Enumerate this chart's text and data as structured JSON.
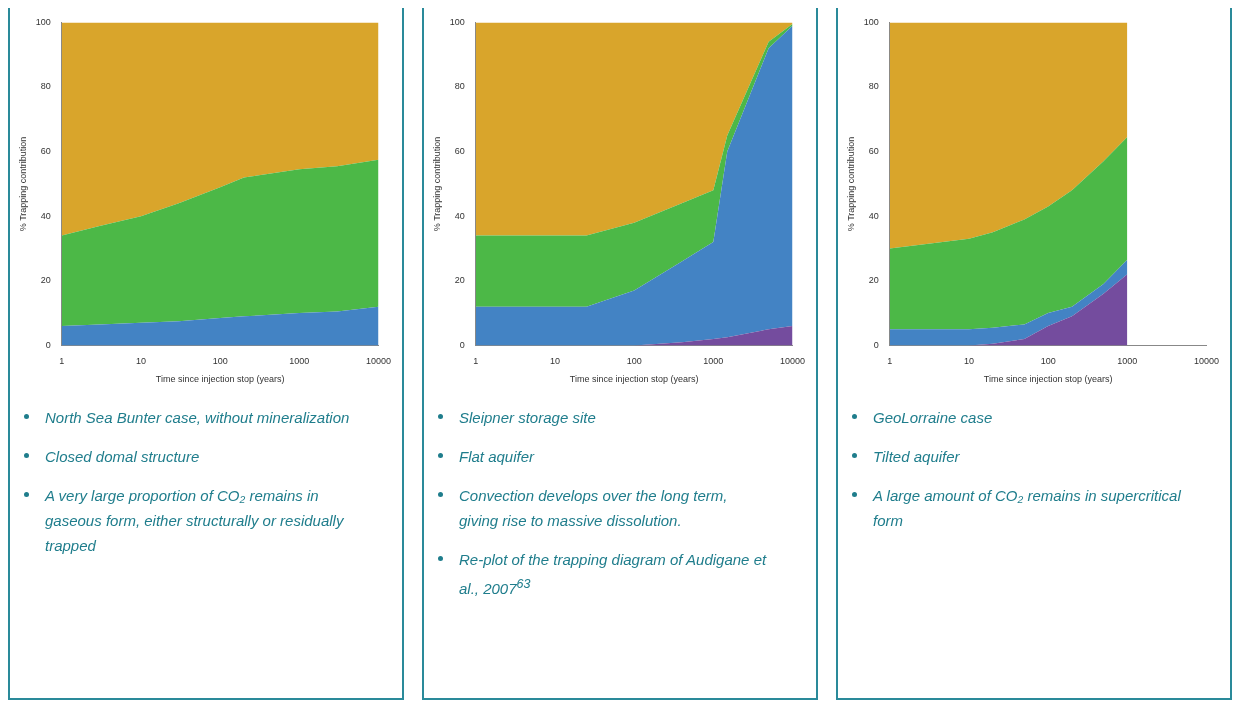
{
  "chart_data": [
    {
      "type": "area",
      "stacked": true,
      "log": "x",
      "xlabel": "Time since injection stop (years)",
      "ylabel": "% Trapping contribution",
      "x": [
        1,
        3,
        10,
        30,
        100,
        200,
        1000,
        3000,
        10000
      ],
      "xlim": [
        1,
        10000
      ],
      "xticks": [
        1,
        10,
        100,
        1000,
        10000
      ],
      "ylim": [
        0,
        100
      ],
      "yticks": [
        0,
        20,
        40,
        60,
        80,
        100
      ],
      "grid": false,
      "legend": false,
      "series": [
        {
          "color": "#4383c4",
          "values": [
            6,
            6.5,
            7,
            7.5,
            8.5,
            9,
            10,
            10.5,
            12
          ]
        },
        {
          "color": "#4cb847",
          "values": [
            28,
            30.5,
            33,
            36.5,
            40.5,
            43,
            44.5,
            45,
            45.5
          ]
        },
        {
          "color": "#d9a52b",
          "values": [
            66,
            63,
            60,
            56,
            51,
            48,
            45.5,
            44.5,
            42.5
          ]
        }
      ],
      "annotations": [
        "North Sea Bunter case, without mineralization",
        "Closed domal structure",
        "A very large proportion of CO₂ remains in gaseous form, either structurally or residually trapped"
      ]
    },
    {
      "type": "area",
      "stacked": true,
      "log": "x",
      "xlabel": "Time since injection stop (years)",
      "ylabel": "% Trapping contribution",
      "x": [
        1,
        25,
        100,
        400,
        1000,
        1500,
        5000,
        10000
      ],
      "xlim": [
        1,
        10000
      ],
      "xticks": [
        1,
        10,
        100,
        1000,
        10000
      ],
      "ylim": [
        0,
        100
      ],
      "yticks": [
        0,
        20,
        40,
        60,
        80,
        100
      ],
      "grid": false,
      "legend": false,
      "series": [
        {
          "color": "#744c9e",
          "values": [
            0,
            0,
            0,
            1,
            2,
            2.5,
            5,
            6
          ]
        },
        {
          "color": "#4383c4",
          "values": [
            12,
            12,
            17,
            25,
            30,
            57.5,
            87,
            93
          ]
        },
        {
          "color": "#4cb847",
          "values": [
            22,
            22,
            21,
            18,
            16,
            5,
            2,
            0.5
          ]
        },
        {
          "color": "#d9a52b",
          "values": [
            66,
            66,
            62,
            56,
            52,
            35,
            6,
            0.5
          ]
        }
      ],
      "annotations": [
        "Sleipner storage site",
        "Flat aquifer",
        "Convection develops over the long term, giving rise to massive dissolution.",
        "Re-plot of the trapping diagram of Audigane et al., 2007$^{63}$"
      ]
    },
    {
      "type": "area",
      "stacked": true,
      "log": "x",
      "xlabel": "Time since injection stop (years)",
      "ylabel": "% Trapping contribution",
      "x": [
        1,
        10,
        20,
        50,
        100,
        200,
        500,
        1000
      ],
      "xlim": [
        1,
        10000
      ],
      "xticks": [
        1,
        10,
        100,
        1000,
        10000
      ],
      "ylim": [
        0,
        100
      ],
      "yticks": [
        0,
        20,
        40,
        60,
        80,
        100
      ],
      "grid": false,
      "legend": false,
      "series": [
        {
          "color": "#744c9e",
          "values": [
            0,
            0,
            0.5,
            2,
            6,
            9,
            16,
            22
          ]
        },
        {
          "color": "#4383c4",
          "values": [
            5,
            5,
            5,
            4.5,
            4,
            3,
            3,
            4.5
          ]
        },
        {
          "color": "#4cb847",
          "values": [
            25,
            28,
            29.5,
            32.5,
            33,
            36,
            38,
            38
          ]
        },
        {
          "color": "#d9a52b",
          "values": [
            70,
            67,
            65,
            61,
            57,
            52,
            43,
            35.5
          ]
        }
      ],
      "annotations": [
        "GeoLorraine case",
        "Tilted aquifer",
        "A large amount of CO₂ remains in supercritical form"
      ]
    }
  ]
}
